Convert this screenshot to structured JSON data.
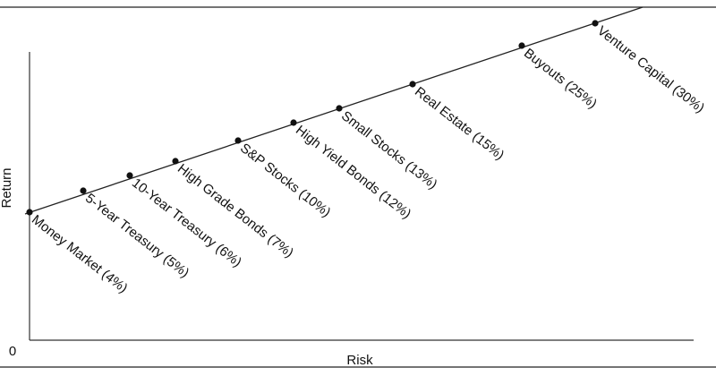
{
  "y_axis_label": "Return",
  "x_axis_label": "Risk",
  "origin_label": "0",
  "points": [
    "Money Market (4%)",
    "5-Year Treasury (5%)",
    "10-Year Treasury (6%)",
    "High Grade Bonds (7%)",
    "S&P Stocks (10%)",
    "High Yield Bonds (12%)",
    "Small Stocks (13%)",
    "Real Estate (15%)",
    "Buyouts (25%)",
    "Venture Capital (30%)"
  ]
}
